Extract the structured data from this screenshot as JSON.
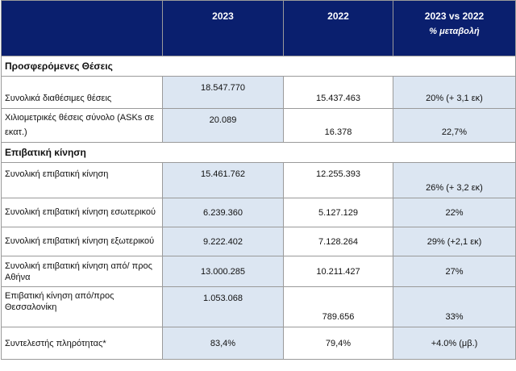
{
  "header": {
    "col_label": "",
    "col_2023": "2023",
    "col_2022": "2022",
    "col_change": "2023 vs 2022",
    "col_change_sub": "% μεταβολή"
  },
  "sections": [
    {
      "title": "Προσφερόμενες Θέσεις",
      "rows": [
        {
          "label": "Συνολικά διαθέσιμες θέσεις",
          "v2023": "18.547.770",
          "v2022": "15.437.463",
          "change": "20% (+ 3,1 εκ)"
        },
        {
          "label": "Χιλιομετρικές θέσεις σύνολο (ASKs σε εκατ.)",
          "v2023": "20.089",
          "v2022": "16.378",
          "change": "22,7%"
        }
      ]
    },
    {
      "title": "Επιβατική κίνηση",
      "rows": [
        {
          "label": "Συνολική επιβατική κίνηση",
          "v2023": "15.461.762",
          "v2022": "12.255.393",
          "change": "26% (+ 3,2 εκ)"
        },
        {
          "label": "Συνολική επιβατική κίνηση εσωτερικού",
          "v2023": "6.239.360",
          "v2022": "5.127.129",
          "change": "22%"
        },
        {
          "label": "Συνολική επιβατική κίνηση εξωτερικού",
          "v2023": "9.222.402",
          "v2022": "7.128.264",
          "change": "29% (+2,1 εκ)"
        },
        {
          "label": "Συνολική επιβατική κίνηση από/ προς Αθήνα",
          "v2023": "13.000.285",
          "v2022": "10.211.427",
          "change": "27%"
        },
        {
          "label": "Επιβατική κίνηση  από/προς Θεσσαλονίκη",
          "v2023": "1.053.068",
          "v2022": "789.656",
          "change": "33%"
        },
        {
          "label": "Συντελεστής πληρότητας*",
          "v2023": "83,4%",
          "v2022": "79,4%",
          "change": "+4.0% (μβ.)"
        }
      ]
    }
  ]
}
